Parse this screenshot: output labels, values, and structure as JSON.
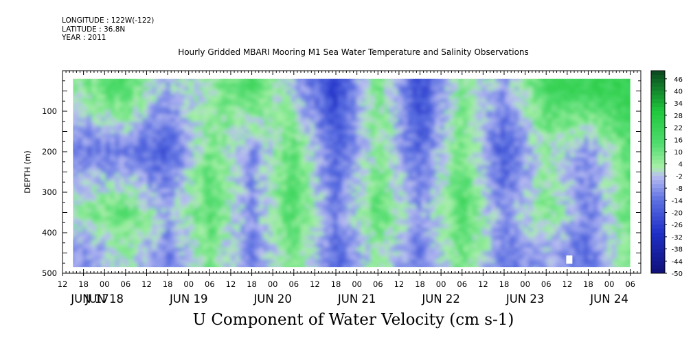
{
  "meta": {
    "longitude": "LONGITUDE : 122W(-122)",
    "latitude": "LATITUDE : 36.8N",
    "year": "YEAR : 2011"
  },
  "title": "Hourly Gridded MBARI Mooring M1 Sea Water Temperature and Salinity Observations",
  "subtitle": "U Component of Water Velocity (cm s-1)",
  "colors": {
    "negative_strong": "#1f30c8",
    "negative_light": "#b9bdf2",
    "positive_light": "#a9f0a9",
    "positive_strong": "#1fc83c",
    "missing": "#ffffff"
  },
  "chart_data": {
    "type": "heatmap",
    "ylabel": "DEPTH (m)",
    "xlabel": "",
    "ylim": [
      500,
      0
    ],
    "yticks": [
      100,
      200,
      300,
      400,
      500
    ],
    "xtick_hour_labels": [
      "12",
      "18",
      "00",
      "06",
      "12",
      "18",
      "00",
      "06",
      "12",
      "18",
      "00",
      "06",
      "12",
      "18",
      "00",
      "06",
      "12",
      "18",
      "00",
      "06",
      "12",
      "18",
      "00",
      "06",
      "12",
      "18",
      "00",
      "06",
      "12",
      "18",
      "00",
      "06",
      "12",
      "18",
      "00",
      "06"
    ],
    "date_labels": [
      "JUN 17",
      "JUN 18",
      "JUN 19",
      "JUN 20",
      "JUN 21",
      "JUN 22",
      "JUN 23",
      "JUN 24"
    ],
    "time_range": [
      "2011-06-17 12:00",
      "2011-06-24 09:00"
    ],
    "data_time_range": [
      "2011-06-17 15:00",
      "2011-06-24 06:00"
    ],
    "data_depth_range": [
      20,
      485
    ],
    "colorbar": {
      "labels": [
        "46",
        "40",
        "34",
        "28",
        "22",
        "16",
        "10",
        "4",
        "-2",
        "-8",
        "-14",
        "-20",
        "-26",
        "-32",
        "-38",
        "-44",
        "-50"
      ],
      "range": [
        -50,
        50
      ]
    },
    "u_by_depth_time": [
      {
        "time": "2011-06-17 18:00",
        "profile": [
          {
            "depth": 50,
            "u": 6
          },
          {
            "depth": 200,
            "u": -14
          },
          {
            "depth": 350,
            "u": 6
          },
          {
            "depth": 450,
            "u": -10
          }
        ]
      },
      {
        "time": "2011-06-18 06:00",
        "profile": [
          {
            "depth": 50,
            "u": 16
          },
          {
            "depth": 200,
            "u": -12
          },
          {
            "depth": 350,
            "u": 12
          },
          {
            "depth": 450,
            "u": 4
          }
        ]
      },
      {
        "time": "2011-06-18 18:00",
        "profile": [
          {
            "depth": 50,
            "u": -6
          },
          {
            "depth": 200,
            "u": -20
          },
          {
            "depth": 350,
            "u": -4
          },
          {
            "depth": 450,
            "u": -12
          }
        ]
      },
      {
        "time": "2011-06-19 06:00",
        "profile": [
          {
            "depth": 50,
            "u": 4
          },
          {
            "depth": 200,
            "u": 10
          },
          {
            "depth": 350,
            "u": 14
          },
          {
            "depth": 450,
            "u": 8
          }
        ]
      },
      {
        "time": "2011-06-19 18:00",
        "profile": [
          {
            "depth": 50,
            "u": 16
          },
          {
            "depth": 200,
            "u": -10
          },
          {
            "depth": 350,
            "u": -8
          },
          {
            "depth": 450,
            "u": -12
          }
        ]
      },
      {
        "time": "2011-06-20 06:00",
        "profile": [
          {
            "depth": 50,
            "u": -4
          },
          {
            "depth": 200,
            "u": 14
          },
          {
            "depth": 350,
            "u": 16
          },
          {
            "depth": 450,
            "u": 10
          }
        ]
      },
      {
        "time": "2011-06-20 18:00",
        "profile": [
          {
            "depth": 50,
            "u": -26
          },
          {
            "depth": 200,
            "u": -18
          },
          {
            "depth": 350,
            "u": -12
          },
          {
            "depth": 450,
            "u": -16
          }
        ]
      },
      {
        "time": "2011-06-21 06:00",
        "profile": [
          {
            "depth": 50,
            "u": 10
          },
          {
            "depth": 200,
            "u": 6
          },
          {
            "depth": 350,
            "u": 14
          },
          {
            "depth": 450,
            "u": 4
          }
        ]
      },
      {
        "time": "2011-06-21 18:00",
        "profile": [
          {
            "depth": 50,
            "u": -24
          },
          {
            "depth": 200,
            "u": -16
          },
          {
            "depth": 350,
            "u": -8
          },
          {
            "depth": 450,
            "u": -14
          }
        ]
      },
      {
        "time": "2011-06-22 06:00",
        "profile": [
          {
            "depth": 50,
            "u": 8
          },
          {
            "depth": 200,
            "u": 10
          },
          {
            "depth": 350,
            "u": 16
          },
          {
            "depth": 450,
            "u": 10
          }
        ]
      },
      {
        "time": "2011-06-22 18:00",
        "profile": [
          {
            "depth": 50,
            "u": -8
          },
          {
            "depth": 200,
            "u": -20
          },
          {
            "depth": 350,
            "u": -10
          },
          {
            "depth": 450,
            "u": -12
          }
        ]
      },
      {
        "time": "2011-06-23 06:00",
        "profile": [
          {
            "depth": 50,
            "u": 18
          },
          {
            "depth": 200,
            "u": 4
          },
          {
            "depth": 350,
            "u": 8
          },
          {
            "depth": 450,
            "u": -6
          }
        ]
      },
      {
        "time": "2011-06-23 18:00",
        "profile": [
          {
            "depth": 50,
            "u": 22
          },
          {
            "depth": 200,
            "u": -10
          },
          {
            "depth": 350,
            "u": -12
          },
          {
            "depth": 450,
            "u": -14
          }
        ]
      },
      {
        "time": "2011-06-24 06:00",
        "profile": [
          {
            "depth": 50,
            "u": 22
          },
          {
            "depth": 200,
            "u": 14
          },
          {
            "depth": 350,
            "u": 12
          },
          {
            "depth": 450,
            "u": 8
          }
        ]
      }
    ]
  }
}
